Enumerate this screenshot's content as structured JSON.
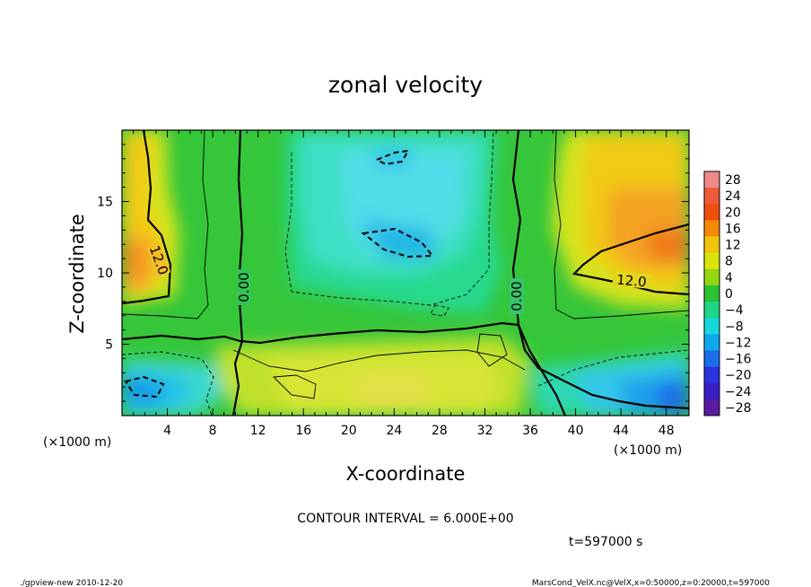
{
  "chart_data": {
    "type": "contour",
    "title": "zonal velocity",
    "xlabel": "X-coordinate",
    "ylabel": "Z-coordinate",
    "x_unit": "(×1000 m)",
    "z_unit": "(×1000 m)",
    "xlim": [
      0,
      50
    ],
    "ylim": [
      0,
      20
    ],
    "x_ticks": [
      4,
      8,
      12,
      16,
      20,
      24,
      28,
      32,
      36,
      40,
      44,
      48
    ],
    "y_ticks": [
      5,
      10,
      15
    ],
    "colorbar": {
      "levels": [
        28,
        24,
        20,
        16,
        12,
        8,
        4,
        0,
        -4,
        -8,
        -12,
        -16,
        -20,
        -24,
        -28
      ],
      "labels": [
        "28",
        "24",
        "20",
        "16",
        "12",
        "8",
        "4",
        "0",
        "−4",
        "−8",
        "−12",
        "−16",
        "−20",
        "−24",
        "−28"
      ],
      "colors": [
        "#f08a8a",
        "#f05a3a",
        "#f04e0c",
        "#f58a06",
        "#f2c40c",
        "#d9e40a",
        "#96d512",
        "#2bc233",
        "#1fd486",
        "#16d8dc",
        "#0ea8ec",
        "#1a6ee8",
        "#2a33dd",
        "#3b1fc6",
        "#5a1ba3"
      ]
    },
    "contour_labels": [
      "12.0",
      "0.00",
      "0.00",
      "12.0"
    ],
    "contour_interval_text": "CONTOUR INTERVAL = 6.000E+00",
    "time_text": "t=597000 s"
  },
  "footer": {
    "left": "./gpview-new  2010-12-20",
    "right": "MarsCond_VelX.nc@VelX,x=0:50000,z=0:20000,t=597000"
  }
}
